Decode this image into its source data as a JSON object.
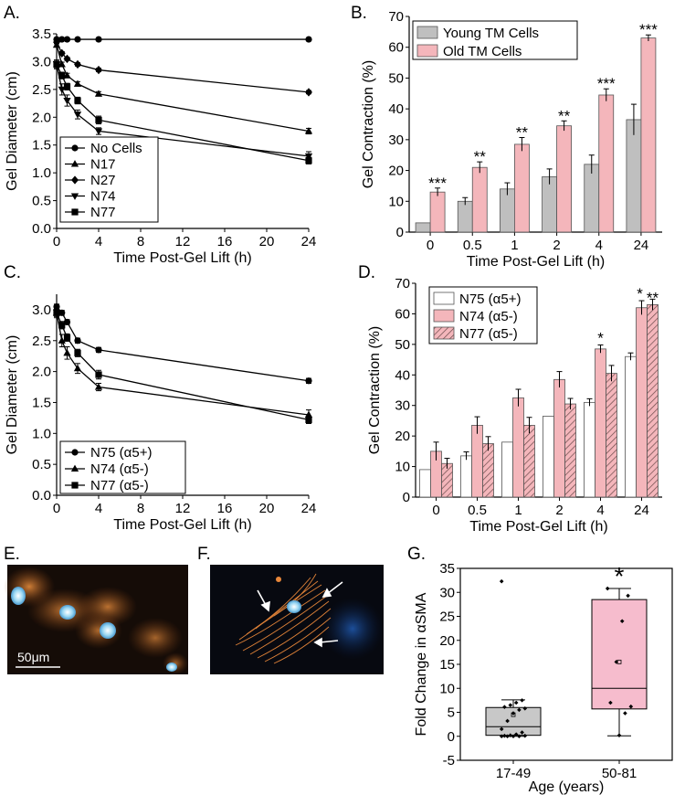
{
  "colors": {
    "black": "#000000",
    "young_gray": "#bfbfbf",
    "old_pink": "#f4b6bb",
    "white_bar": "#ffffff",
    "hatch_line": "#6b4a4a",
    "box_gray": "#c8c8c8",
    "box_pink": "#f6bccd"
  },
  "panels": {
    "A": "A.",
    "B": "B.",
    "C": "C.",
    "D": "D.",
    "E": "E.",
    "F": "F.",
    "G": "G."
  },
  "images": {
    "E": {
      "scale_label": "50μm",
      "icon": "fluorescence-micrograph"
    },
    "F": {
      "icon": "fluorescence-micrograph"
    }
  },
  "chart_data": [
    {
      "id": "A",
      "type": "line",
      "title": "",
      "xlabel": "Time Post-Gel Lift (h)",
      "ylabel": "Gel Diameter (cm)",
      "xlim": [
        0,
        24
      ],
      "ylim": [
        0,
        3.5
      ],
      "xticks": [
        0,
        4,
        8,
        12,
        16,
        20,
        24
      ],
      "xtick_labels": [
        "0",
        "4",
        "8",
        "12",
        "16",
        "20",
        "24"
      ],
      "yticks": [
        0,
        0.5,
        1.0,
        1.5,
        2.0,
        2.5,
        3.0,
        3.5
      ],
      "ytick_labels": [
        "0.0",
        "0.5",
        "1.0",
        "1.5",
        "2.0",
        "2.5",
        "3.0",
        "3.5"
      ],
      "x": [
        0,
        0.5,
        1,
        2,
        4,
        24
      ],
      "legend_position": "bottom-left",
      "series": [
        {
          "name": "No Cells",
          "marker": "circle",
          "values": [
            3.4,
            3.4,
            3.4,
            3.4,
            3.4,
            3.4
          ],
          "errors": [
            0.02,
            0.02,
            0.02,
            0.02,
            0.02,
            0.02
          ]
        },
        {
          "name": "N17",
          "marker": "triangle-up",
          "values": [
            3.3,
            2.95,
            2.75,
            2.6,
            2.42,
            1.75
          ],
          "errors": [
            0.04,
            0.04,
            0.04,
            0.04,
            0.04,
            0.05
          ]
        },
        {
          "name": "N27",
          "marker": "diamond",
          "values": [
            3.35,
            3.15,
            3.05,
            2.95,
            2.85,
            2.45
          ],
          "errors": [
            0.03,
            0.03,
            0.03,
            0.03,
            0.03,
            0.03
          ]
        },
        {
          "name": "N74",
          "marker": "triangle-down",
          "values": [
            2.95,
            2.5,
            2.3,
            2.05,
            1.75,
            1.3
          ],
          "errors": [
            0.08,
            0.1,
            0.1,
            0.08,
            0.06,
            0.08
          ]
        },
        {
          "name": "N77",
          "marker": "square",
          "values": [
            2.95,
            2.75,
            2.55,
            2.3,
            1.95,
            1.22
          ],
          "errors": [
            0.06,
            0.06,
            0.06,
            0.06,
            0.07,
            0.06
          ]
        }
      ]
    },
    {
      "id": "B",
      "type": "bar",
      "title": "",
      "xlabel": "Time Post-Gel Lift (h)",
      "ylabel": "Gel Contraction (%)",
      "ylim": [
        0,
        70
      ],
      "yticks": [
        0,
        10,
        20,
        30,
        40,
        50,
        60,
        70
      ],
      "categories": [
        "0",
        "0.5",
        "1",
        "2",
        "4",
        "24"
      ],
      "legend_position": "top-left",
      "series": [
        {
          "name": "Young TM Cells",
          "values": [
            3,
            10,
            14,
            18,
            22,
            36.5
          ],
          "errors": [
            0,
            1.2,
            2,
            2.5,
            3,
            5
          ]
        },
        {
          "name": "Old TM Cells",
          "values": [
            13,
            21,
            28.5,
            34.5,
            44.5,
            63
          ],
          "errors": [
            1.3,
            1.8,
            2.2,
            1.6,
            2,
            1
          ]
        }
      ],
      "annotations": [
        "***",
        "**",
        "**",
        "**",
        "***",
        "***"
      ]
    },
    {
      "id": "C",
      "type": "line",
      "title": "",
      "xlabel": "Time Post-Gel Lift (h)",
      "ylabel": "Gel Diameter (cm)",
      "xlim": [
        0,
        24
      ],
      "ylim": [
        0,
        3.25
      ],
      "xticks": [
        0,
        4,
        8,
        12,
        16,
        20,
        24
      ],
      "xtick_labels": [
        "0",
        "4",
        "8",
        "12",
        "16",
        "20",
        "24"
      ],
      "yticks": [
        0,
        0.5,
        1.0,
        1.5,
        2.0,
        2.5,
        3.0
      ],
      "ytick_labels": [
        "0.0",
        "0.5",
        "1.0",
        "1.5",
        "2.0",
        "2.5",
        "3.0"
      ],
      "x": [
        0,
        0.5,
        1,
        2,
        4,
        24
      ],
      "legend_position": "bottom-left",
      "series": [
        {
          "name": "N75 (α5+)",
          "marker": "circle",
          "values": [
            3.05,
            2.95,
            2.8,
            2.5,
            2.35,
            1.85
          ],
          "errors": [
            0.04,
            0.04,
            0.04,
            0.04,
            0.04,
            0.04
          ]
        },
        {
          "name": "N74 (α5-)",
          "marker": "triangle-up",
          "values": [
            2.95,
            2.5,
            2.3,
            2.05,
            1.75,
            1.3
          ],
          "errors": [
            0.08,
            0.1,
            0.1,
            0.08,
            0.06,
            0.08
          ]
        },
        {
          "name": "N77 (α5-)",
          "marker": "square",
          "values": [
            2.95,
            2.75,
            2.55,
            2.3,
            1.95,
            1.22
          ],
          "errors": [
            0.06,
            0.06,
            0.06,
            0.06,
            0.07,
            0.06
          ]
        }
      ]
    },
    {
      "id": "D",
      "type": "bar",
      "title": "",
      "xlabel": "Time Post-Gel Lift (h)",
      "ylabel": "Gel Contraction (%)",
      "ylim": [
        0,
        70
      ],
      "yticks": [
        0,
        10,
        20,
        30,
        40,
        50,
        60,
        70
      ],
      "categories": [
        "0",
        "0.5",
        "1",
        "2",
        "4",
        "24"
      ],
      "legend_position": "top-left",
      "series": [
        {
          "name": "N75 (α5+)",
          "style": "white",
          "values": [
            9,
            13.5,
            18,
            26.5,
            31,
            46
          ],
          "errors": [
            0,
            1.3,
            0,
            0,
            1.2,
            1.2
          ]
        },
        {
          "name": "N74 (α5-)",
          "style": "pink",
          "values": [
            15,
            23.5,
            32.5,
            38.5,
            48.5,
            62
          ],
          "errors": [
            3,
            2.8,
            2.8,
            2.6,
            1.3,
            2.3
          ]
        },
        {
          "name": "N77 (α5-)",
          "style": "hatched",
          "values": [
            11,
            17.5,
            23.5,
            30.5,
            40.5,
            63
          ],
          "errors": [
            1.7,
            2.3,
            2.6,
            1.8,
            2.6,
            1.8
          ]
        }
      ],
      "annotations": [
        {
          "category": "4",
          "text": "*"
        },
        {
          "category": "24",
          "text": "*"
        },
        {
          "category": "24",
          "text": "**"
        }
      ]
    },
    {
      "id": "G",
      "type": "box",
      "title": "",
      "xlabel": "Age (years)",
      "ylabel": "Fold Change in αSMA",
      "ylim": [
        -5,
        35
      ],
      "yticks": [
        -5,
        0,
        5,
        10,
        15,
        20,
        25,
        30,
        35
      ],
      "categories": [
        "17-49",
        "50-81"
      ],
      "boxes": [
        {
          "name": "17-49",
          "q1": 0.2,
          "median": 2,
          "q3": 6,
          "whisker_low": 0,
          "whisker_high": 7.6,
          "mean": 4.5,
          "points": [
            32.3,
            7.5,
            7.0,
            6.5,
            6.1,
            5.8,
            5.5,
            4.8,
            3.2,
            1.5,
            0.8,
            0.4,
            0.2,
            0.1,
            0.1,
            0.0,
            0.0,
            0.0,
            0.0
          ]
        },
        {
          "name": "50-81",
          "q1": 5.7,
          "median": 10,
          "q3": 28.5,
          "whisker_low": 0.1,
          "whisker_high": 30.8,
          "mean": 15.5,
          "points": [
            30.8,
            29.3,
            24.0,
            15.5,
            7.0,
            6.2,
            4.8,
            0.2
          ]
        }
      ],
      "annotations": [
        {
          "category": "50-81",
          "text": "*"
        }
      ]
    }
  ]
}
